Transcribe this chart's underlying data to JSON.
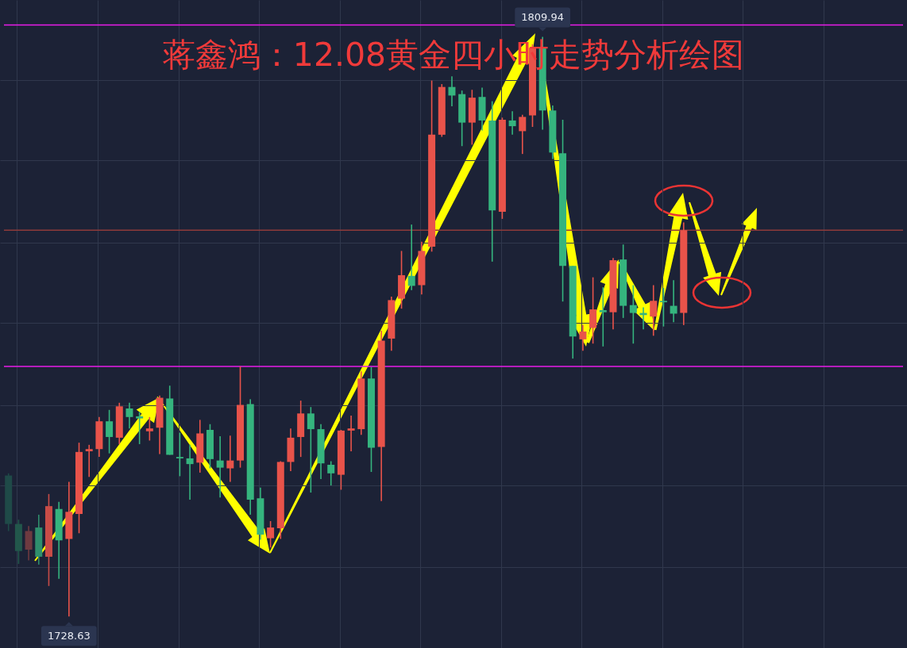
{
  "chart_data": {
    "type": "candlestick",
    "title": "蒋鑫鸿：12.08黄金四小时走势分析绘图",
    "categories": [
      null,
      null,
      null,
      null,
      null,
      null,
      null,
      null,
      null,
      null,
      null,
      null,
      null,
      null,
      null,
      null,
      null,
      null,
      null,
      null,
      null,
      null,
      null,
      null,
      null,
      null,
      null,
      null,
      null,
      null,
      null,
      null,
      null,
      null,
      null,
      null,
      null,
      null,
      null,
      null,
      null,
      null,
      null,
      null,
      null,
      null,
      null,
      null,
      null,
      null,
      null,
      null,
      null,
      null,
      null,
      null,
      null,
      null,
      null,
      null,
      null,
      null,
      null,
      null,
      null,
      null,
      null,
      null
    ],
    "ohlc": [
      [
        1748.4,
        1748.7,
        1740.6,
        1741.6
      ],
      [
        1741.6,
        1742.2,
        1736.0,
        1737.8
      ],
      [
        1738.0,
        1741.3,
        1736.5,
        1740.6
      ],
      [
        1741.1,
        1742.9,
        1735.9,
        1737.0
      ],
      [
        1737.0,
        1745.8,
        1732.9,
        1744.1
      ],
      [
        1743.7,
        1744.7,
        1733.9,
        1739.3
      ],
      [
        1739.5,
        1747.5,
        1728.63,
        1743.3
      ],
      [
        1743.0,
        1753.0,
        1740.3,
        1751.7
      ],
      [
        1751.8,
        1752.7,
        1748.2,
        1752.1
      ],
      [
        1752.1,
        1756.6,
        1751.0,
        1756.0
      ],
      [
        1756.0,
        1757.6,
        1751.5,
        1753.8
      ],
      [
        1753.7,
        1758.6,
        1752.8,
        1758.1
      ],
      [
        1757.8,
        1758.6,
        1755.0,
        1756.6
      ],
      [
        1756.7,
        1757.3,
        1752.8,
        1756.4
      ],
      [
        1754.6,
        1756.6,
        1753.3,
        1755.0
      ],
      [
        1755.1,
        1759.6,
        1751.4,
        1759.3
      ],
      [
        1759.2,
        1761.0,
        1751.3,
        1751.3
      ],
      [
        1751.0,
        1754.4,
        1748.3,
        1750.8
      ],
      [
        1750.8,
        1752.7,
        1745.0,
        1750.0
      ],
      [
        1750.2,
        1756.2,
        1748.8,
        1754.3
      ],
      [
        1754.8,
        1755.6,
        1749.4,
        1750.7
      ],
      [
        1750.5,
        1753.9,
        1745.3,
        1749.5
      ],
      [
        1749.4,
        1754.0,
        1747.5,
        1750.5
      ],
      [
        1750.5,
        1763.7,
        1749.5,
        1758.3
      ],
      [
        1758.4,
        1759.1,
        1742.9,
        1745.0
      ],
      [
        1745.2,
        1746.7,
        1739.4,
        1740.1
      ],
      [
        1739.6,
        1742.0,
        1738.3,
        1741.1
      ],
      [
        1741.0,
        1750.4,
        1739.5,
        1750.3
      ],
      [
        1750.3,
        1755.0,
        1749.0,
        1753.7
      ],
      [
        1753.8,
        1758.9,
        1751.0,
        1757.1
      ],
      [
        1757.1,
        1758.0,
        1746.0,
        1754.9
      ],
      [
        1754.9,
        1755.6,
        1747.9,
        1750.1
      ],
      [
        1749.9,
        1750.4,
        1747.0,
        1748.7
      ],
      [
        1748.5,
        1754.8,
        1746.4,
        1754.7
      ],
      [
        1754.7,
        1756.8,
        1751.8,
        1755.0
      ],
      [
        1754.9,
        1763.0,
        1754.1,
        1762.0
      ],
      [
        1762.0,
        1763.6,
        1748.9,
        1752.3
      ],
      [
        1752.4,
        1768.7,
        1744.8,
        1767.3
      ],
      [
        1767.6,
        1773.5,
        1765.9,
        1773.0
      ],
      [
        1773.2,
        1779.9,
        1771.8,
        1776.5
      ],
      [
        1776.4,
        1783.6,
        1774.4,
        1775.0
      ],
      [
        1775.1,
        1781.2,
        1773.8,
        1779.9
      ],
      [
        1780.5,
        1803.8,
        1779.8,
        1796.2
      ],
      [
        1796.2,
        1803.3,
        1795.9,
        1802.9
      ],
      [
        1802.9,
        1804.4,
        1800.2,
        1801.7
      ],
      [
        1801.9,
        1802.4,
        1794.6,
        1797.9
      ],
      [
        1797.9,
        1802.5,
        1794.8,
        1801.4
      ],
      [
        1801.5,
        1802.8,
        1796.8,
        1798.2
      ],
      [
        1798.2,
        1800.9,
        1778.4,
        1785.6
      ],
      [
        1785.4,
        1798.6,
        1784.4,
        1798.3
      ],
      [
        1798.2,
        1799.5,
        1796.2,
        1797.4
      ],
      [
        1796.7,
        1799.0,
        1793.5,
        1798.7
      ],
      [
        1798.9,
        1808.9,
        1797.3,
        1808.4
      ],
      [
        1808.5,
        1809.94,
        1796.9,
        1799.6
      ],
      [
        1799.6,
        1800.3,
        1792.8,
        1793.7
      ],
      [
        1793.6,
        1798.3,
        1772.8,
        1777.8
      ],
      [
        1777.8,
        1777.8,
        1764.8,
        1767.9
      ],
      [
        1767.5,
        1769.5,
        1765.9,
        1768.6
      ],
      [
        1769.1,
        1776.2,
        1766.9,
        1771.7
      ],
      [
        1771.6,
        1774.8,
        1766.5,
        1771.3
      ],
      [
        1771.3,
        1778.9,
        1768.9,
        1778.6
      ],
      [
        1778.7,
        1780.8,
        1770.5,
        1772.2
      ],
      [
        1772.3,
        1775.1,
        1766.9,
        1771.2
      ],
      [
        1771.2,
        1772.0,
        1768.9,
        1770.9
      ],
      [
        1770.7,
        1775.1,
        1768.0,
        1772.9
      ],
      [
        1772.9,
        1774.7,
        1769.3,
        1772.7
      ],
      [
        1772.2,
        1775.8,
        1769.9,
        1771.1
      ],
      [
        1771.2,
        1783.9,
        1769.5,
        1782.8
      ]
    ],
    "colors": [
      "#1f4a48",
      "#22574b",
      "#6f3a40",
      "#2f8f6d",
      "#c94c47",
      "#35b47e",
      "#e8534a",
      "#e8534a",
      "#e8534a",
      "#e8534a",
      "#35b47e",
      "#e8534a",
      "#35b47e",
      "#35b47e",
      "#e8534a",
      "#e8534a",
      "#35b47e",
      "#35b47e",
      "#35b47e",
      "#e8534a",
      "#35b47e",
      "#35b47e",
      "#e8534a",
      "#e8534a",
      "#35b47e",
      "#35b47e",
      "#e8534a",
      "#e8534a",
      "#e8534a",
      "#e8534a",
      "#35b47e",
      "#35b47e",
      "#35b47e",
      "#e8534a",
      "#e8534a",
      "#e8534a",
      "#35b47e",
      "#e8534a",
      "#e8534a",
      "#e8534a",
      "#35b47e",
      "#e8534a",
      "#e8534a",
      "#e8534a",
      "#35b47e",
      "#35b47e",
      "#e8534a",
      "#35b47e",
      "#35b47e",
      "#e8534a",
      "#35b47e",
      "#e8534a",
      "#e8534a",
      "#35b47e",
      "#35b47e",
      "#35b47e",
      "#35b47e",
      "#e8534a",
      "#e8534a",
      "#35b47e",
      "#e8534a",
      "#35b47e",
      "#35b47e",
      "#35b47e",
      "#e8534a",
      "#35b47e",
      "#35b47e",
      "#e8534a"
    ],
    "ylim": [
      1724.2,
      1815.1
    ],
    "yticks": [
      {
        "value": 1735.6,
        "label": null
      },
      {
        "value": 1747.0,
        "label": null
      },
      {
        "value": 1758.3,
        "label": null
      },
      {
        "value": 1769.8,
        "label": null
      },
      {
        "value": 1781.1,
        "label": null
      },
      {
        "value": 1792.6,
        "label": null
      },
      {
        "value": 1803.9,
        "label": null
      }
    ],
    "grid": true,
    "ref_lines": [
      {
        "axis": "y",
        "value": 1811.6,
        "color": "#e81ce8"
      },
      {
        "axis": "y",
        "value": 1763.7,
        "color": "#e81ce8"
      },
      {
        "axis": "y",
        "value": 1782.8,
        "color": "#8e3a3a"
      }
    ],
    "annotations": [
      {
        "text": "1809.94",
        "y": 1809.94
      },
      {
        "text": "1728.63",
        "y": 1728.63
      }
    ]
  }
}
